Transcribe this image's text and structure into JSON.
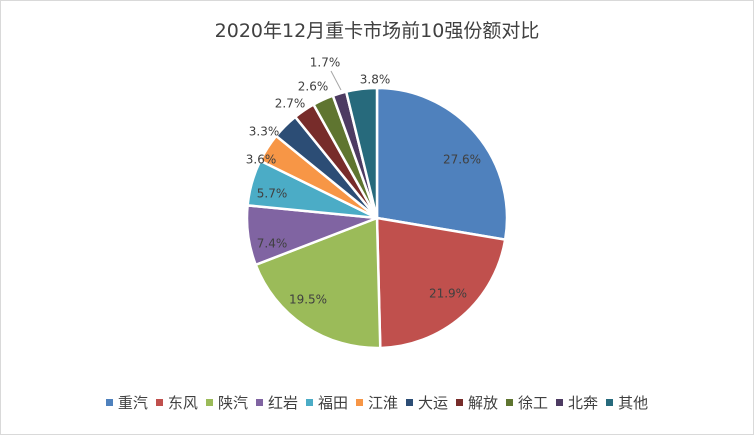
{
  "chart_data": {
    "type": "pie",
    "title": "2020年12月重卡市场前10强份额对比",
    "categories": [
      "重汽",
      "东风",
      "陕汽",
      "红岩",
      "福田",
      "江淮",
      "大运",
      "解放",
      "徐工",
      "北奔",
      "其他"
    ],
    "values": [
      27.6,
      21.9,
      19.5,
      7.4,
      5.7,
      3.6,
      3.3,
      2.7,
      2.6,
      1.7,
      3.8
    ],
    "labels": [
      "27.6%",
      "21.9%",
      "19.5%",
      "7.4%",
      "5.7%",
      "3.6%",
      "3.3%",
      "2.7%",
      "2.6%",
      "1.7%",
      "3.8%"
    ],
    "colors": [
      "#4F81BD",
      "#C0504D",
      "#9BBB59",
      "#8064A2",
      "#4BACC6",
      "#F79646",
      "#2C4D75",
      "#772C2A",
      "#5F7530",
      "#4D3B62",
      "#276A7C"
    ],
    "legend_position": "bottom"
  }
}
